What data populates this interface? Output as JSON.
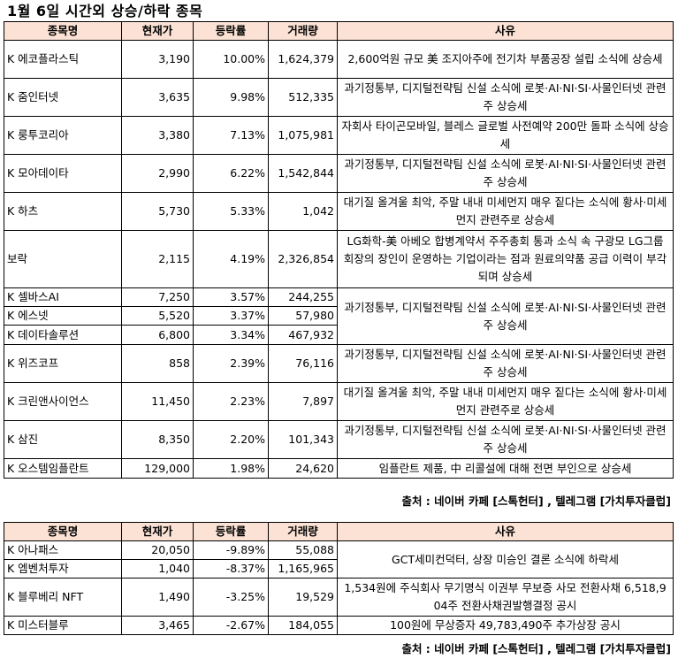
{
  "title": "1월 6일  시간외 상승/하락 종목",
  "headers": [
    "종목명",
    "현재가",
    "등락률",
    "거래량",
    "사유"
  ],
  "rising": [
    {
      "name": "K 에코플라스틱",
      "price": "3,190",
      "change": "10.00%",
      "volume": "1,624,379",
      "reason": "2,600억원 규모 美 조지아주에 전기차 부품공장 설립 소식에 상승세",
      "rowspan": 1
    },
    {
      "name": "K 줌인터넷",
      "price": "3,635",
      "change": "9.98%",
      "volume": "512,335",
      "reason": "과기정통부, 디지털전략팀 신설 소식에 로봇·AI·NI·SI·사물인터넷 관련주 상승세",
      "rowspan": 1
    },
    {
      "name": "K 룽투코리아",
      "price": "3,380",
      "change": "7.13%",
      "volume": "1,075,981",
      "reason": "자회사 타이곤모바일, 블레스 글로벌 사전예약 200만 돌파 소식에 상승세",
      "rowspan": 1
    },
    {
      "name": "K 모아데이타",
      "price": "2,990",
      "change": "6.22%",
      "volume": "1,542,844",
      "reason": "과기정통부, 디지털전략팀 신설 소식에 로봇·AI·NI·SI·사물인터넷 관련주 상승세",
      "rowspan": 1
    },
    {
      "name": "K 하츠",
      "price": "5,730",
      "change": "5.33%",
      "volume": "1,042",
      "reason": "대기질 올겨울 최악, 주말 내내 미세먼지 매우 짙다는 소식에 황사·미세먼지 관련주로 상승세",
      "rowspan": 1
    },
    {
      "name": "보락",
      "price": "2,115",
      "change": "4.19%",
      "volume": "2,326,854",
      "reason": "LG화학-美 아베오 합병계약서 주주총회 통과 소식 속 구광모 LG그룹 회장의 장인이 운영하는 기업이라는 점과 원료의약품 공급 이력이 부각되며 상승세",
      "rowspan": 1
    },
    {
      "name": "K 셀바스AI",
      "price": "7,250",
      "change": "3.57%",
      "volume": "244,255",
      "reason": "과기정통부, 디지털전략팀 신설 소식에 로봇·AI·NI·SI·사물인터넷 관련주 상승세",
      "rowspan": 3
    },
    {
      "name": "K 에스넷",
      "price": "5,520",
      "change": "3.37%",
      "volume": "57,980",
      "reason": "",
      "rowspan": 0
    },
    {
      "name": "K 데이타솔루션",
      "price": "6,800",
      "change": "3.34%",
      "volume": "467,932",
      "reason": "",
      "rowspan": 0
    },
    {
      "name": "K 위즈코프",
      "price": "858",
      "change": "2.39%",
      "volume": "76,116",
      "reason": "과기정통부, 디지털전략팀 신설 소식에 로봇·AI·NI·SI·사물인터넷 관련주 상승세",
      "rowspan": 1
    },
    {
      "name": "K 크린앤사이언스",
      "price": "11,450",
      "change": "2.23%",
      "volume": "7,897",
      "reason": "대기질 올겨울 최악, 주말 내내 미세먼지 매우 짙다는 소식에 황사·미세먼지 관련주로 상승세",
      "rowspan": 1
    },
    {
      "name": "K 삼진",
      "price": "8,350",
      "change": "2.20%",
      "volume": "101,343",
      "reason": "과기정통부, 디지털전략팀 신설 소식에 로봇·AI·NI·SI·사물인터넷 관련주 상승세",
      "rowspan": 1
    },
    {
      "name": "K 오스템임플란트",
      "price": "129,000",
      "change": "1.98%",
      "volume": "24,620",
      "reason": "임플란트 제품, 中 리콜설에 대해 전면 부인으로 상승세",
      "rowspan": 1
    }
  ],
  "falling": [
    {
      "name": "K 아나패스",
      "price": "20,050",
      "change": "-9.89%",
      "volume": "55,088",
      "reason": "GCT세미컨덕터, 상장 미승인 결론 소식에 하락세",
      "rowspan": 2
    },
    {
      "name": "K 엠벤처투자",
      "price": "1,040",
      "change": "-8.37%",
      "volume": "1,165,965",
      "reason": "",
      "rowspan": 0
    },
    {
      "name": "K 블루베리 NFT",
      "price": "1,490",
      "change": "-3.25%",
      "volume": "19,529",
      "reason": "1,534원에 주식회사 무기명식 이권부 무보증 사모 전환사채 6,518,904주 전환사채권발행결정 공시",
      "rowspan": 1
    },
    {
      "name": "K 미스터블루",
      "price": "3,465",
      "change": "-2.67%",
      "volume": "184,055",
      "reason": "100원에 무상증자 49,783,490주 추가상장 공시",
      "rowspan": 1
    }
  ],
  "source": "출처 : 네이버 카페 [스톡헌터] , 텔레그램 [가치투자클럽]",
  "colors": {
    "header_bg": "#fbe2d5",
    "border": "#000000"
  }
}
